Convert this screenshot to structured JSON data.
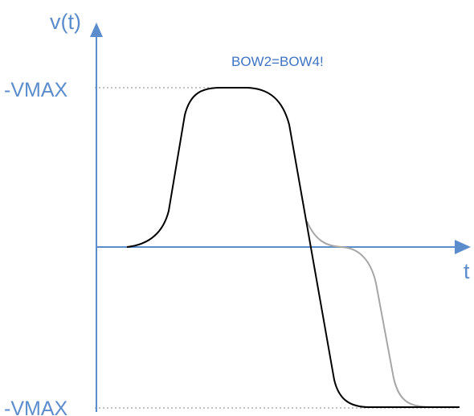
{
  "diagram": {
    "y_axis_label": "v(t)",
    "x_axis_label": "t",
    "vmax_top_label": "-VMAX",
    "vmax_bottom_label": "-VMAX",
    "annotation": "BOW2=BOW4!",
    "colors": {
      "axis": "#5b8ccc",
      "dotted_guide": "#8a8a8a",
      "main_curve": "#000000",
      "alt_curve": "#a6a6a6",
      "annotation_text": "#3f74c4"
    }
  }
}
